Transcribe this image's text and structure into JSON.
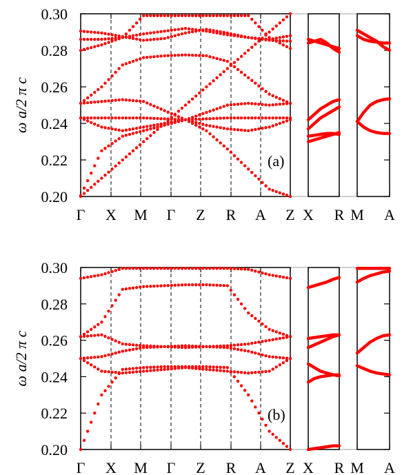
{
  "chart_data": [
    {
      "type": "scatter",
      "panel_label": "(a)",
      "ylabel": "ω a/2 π c",
      "ylim": [
        0.2,
        0.3
      ],
      "yticks": [
        "0.20",
        "0.22",
        "0.24",
        "0.26",
        "0.28",
        "0.30"
      ],
      "segments": [
        {
          "ticks": [
            "Γ",
            "X",
            "M",
            "Γ",
            "Z",
            "R",
            "A",
            "Z"
          ]
        },
        {
          "ticks": [
            "X",
            "R"
          ]
        },
        {
          "ticks": [
            "M",
            "A"
          ]
        }
      ],
      "series": [
        {
          "segment": 0,
          "y": [
            0.2905,
            0.2895,
            0.2875,
            0.2855,
            0.2865,
            0.2895,
            0.2915,
            0.2895,
            0.287,
            0.286,
            0.288
          ]
        },
        {
          "segment": 0,
          "y": [
            0.286,
            0.286,
            0.287,
            0.289,
            0.2905,
            0.292,
            0.2905,
            0.2885,
            0.287,
            0.2855,
            0.285
          ]
        },
        {
          "segment": 0,
          "y": [
            0.251,
            0.252,
            0.253,
            0.252,
            0.247,
            0.242,
            0.246,
            0.25,
            0.251,
            0.25,
            0.251
          ]
        },
        {
          "segment": 0,
          "y": [
            0.243,
            0.243,
            0.243,
            0.243,
            0.2425,
            0.242,
            0.2425,
            0.243,
            0.243,
            0.243,
            0.243
          ]
        },
        {
          "segment": 0,
          "y": [
            0.243,
            0.238,
            0.236,
            0.238,
            0.24,
            0.242,
            0.239,
            0.237,
            0.236,
            0.238,
            0.242
          ]
        },
        {
          "segment": 0,
          "y": [
            0.2005,
            0.225,
            0.233,
            0.236,
            0.239,
            0.242,
            0.236,
            0.226,
            0.215,
            0.204,
            0.2
          ]
        },
        {
          "segment": 0,
          "y": [
            0.251,
            0.26,
            0.272,
            0.276,
            0.277,
            0.2775,
            0.277,
            0.274,
            0.265,
            0.256,
            0.251
          ]
        },
        {
          "segment": 0,
          "y": [
            0.28,
            0.283,
            0.287,
            0.299,
            0.299,
            0.299,
            0.299,
            0.299,
            0.299,
            0.287,
            0.281
          ]
        },
        {
          "segment": 1,
          "y": [
            0.284,
            0.285,
            0.286,
            0.284,
            0.281,
            0.279
          ]
        },
        {
          "segment": 1,
          "y": [
            0.286,
            0.285,
            0.284,
            0.283,
            0.282,
            0.281
          ]
        },
        {
          "segment": 1,
          "y": [
            0.242,
            0.245,
            0.248,
            0.25,
            0.252,
            0.253
          ]
        },
        {
          "segment": 1,
          "y": [
            0.237,
            0.24,
            0.243,
            0.245,
            0.247,
            0.249
          ]
        },
        {
          "segment": 1,
          "y": [
            0.23,
            0.231,
            0.232,
            0.233,
            0.234,
            0.235
          ]
        },
        {
          "segment": 1,
          "y": [
            0.233,
            0.2335,
            0.234,
            0.2345,
            0.2345,
            0.234
          ]
        },
        {
          "segment": 2,
          "y": [
            0.241,
            0.246,
            0.25,
            0.252,
            0.253,
            0.2535
          ]
        },
        {
          "segment": 2,
          "y": [
            0.241,
            0.238,
            0.236,
            0.235,
            0.2345,
            0.2345
          ]
        },
        {
          "segment": 2,
          "y": [
            0.288,
            0.286,
            0.285,
            0.2845,
            0.284,
            0.284
          ]
        },
        {
          "segment": 2,
          "y": [
            0.291,
            0.289,
            0.287,
            0.285,
            0.282,
            0.28
          ]
        },
        {
          "segment": 0,
          "y": [
            0.2,
            0.21,
            0.22,
            0.23,
            0.24,
            0.25,
            0.26,
            0.27,
            0.28,
            0.29,
            0.3
          ]
        }
      ]
    },
    {
      "type": "scatter",
      "panel_label": "(b)",
      "ylabel": "ω a/2 π c",
      "ylim": [
        0.2,
        0.3
      ],
      "yticks": [
        "0.20",
        "0.22",
        "0.24",
        "0.26",
        "0.28",
        "0.30"
      ],
      "segments": [
        {
          "ticks": [
            "Γ",
            "X",
            "M",
            "Γ",
            "Z",
            "R",
            "A",
            "Z"
          ]
        },
        {
          "ticks": [
            "X",
            "R"
          ]
        },
        {
          "ticks": [
            "M",
            "A"
          ]
        }
      ],
      "series": [
        {
          "segment": 0,
          "y": [
            0.294,
            0.296,
            0.2995,
            0.2995,
            0.2995,
            0.2995,
            0.2995,
            0.2995,
            0.299,
            0.296,
            0.294
          ]
        },
        {
          "segment": 0,
          "y": [
            0.262,
            0.27,
            0.288,
            0.2895,
            0.29,
            0.2905,
            0.2905,
            0.29,
            0.275,
            0.266,
            0.262
          ]
        },
        {
          "segment": 0,
          "y": [
            0.262,
            0.263,
            0.258,
            0.257,
            0.2565,
            0.256,
            0.2565,
            0.257,
            0.258,
            0.26,
            0.262
          ]
        },
        {
          "segment": 0,
          "y": [
            0.25,
            0.251,
            0.254,
            0.256,
            0.2565,
            0.257,
            0.2565,
            0.256,
            0.254,
            0.251,
            0.25
          ]
        },
        {
          "segment": 0,
          "y": [
            0.25,
            0.243,
            0.242,
            0.243,
            0.244,
            0.245,
            0.244,
            0.243,
            0.242,
            0.243,
            0.25
          ]
        },
        {
          "segment": 0,
          "y": [
            0.2,
            0.23,
            0.244,
            0.245,
            0.2455,
            0.2455,
            0.2455,
            0.245,
            0.23,
            0.21,
            0.2
          ]
        },
        {
          "segment": 1,
          "y": [
            0.289,
            0.29,
            0.291,
            0.292,
            0.2935,
            0.2945
          ]
        },
        {
          "segment": 1,
          "y": [
            0.261,
            0.2615,
            0.262,
            0.2625,
            0.263,
            0.263
          ]
        },
        {
          "segment": 1,
          "y": [
            0.256,
            0.2575,
            0.259,
            0.2605,
            0.262,
            0.263
          ]
        },
        {
          "segment": 1,
          "y": [
            0.247,
            0.245,
            0.243,
            0.242,
            0.241,
            0.2405
          ]
        },
        {
          "segment": 1,
          "y": [
            0.237,
            0.239,
            0.24,
            0.2405,
            0.241,
            0.241
          ]
        },
        {
          "segment": 1,
          "y": [
            0.2,
            0.2005,
            0.201,
            0.2015,
            0.202,
            0.202
          ]
        },
        {
          "segment": 2,
          "y": [
            0.292,
            0.294,
            0.2955,
            0.2965,
            0.2975,
            0.298
          ]
        },
        {
          "segment": 2,
          "y": [
            0.253,
            0.256,
            0.259,
            0.261,
            0.2625,
            0.263
          ]
        },
        {
          "segment": 2,
          "y": [
            0.246,
            0.2445,
            0.243,
            0.242,
            0.2415,
            0.241
          ]
        },
        {
          "segment": 2,
          "y": [
            0.2995,
            0.2995,
            0.2995,
            0.2995,
            0.2995,
            0.2995
          ]
        }
      ]
    }
  ],
  "colors": {
    "points": "#ff0000",
    "axes": "#000000",
    "gap": "#bfbfbf"
  }
}
